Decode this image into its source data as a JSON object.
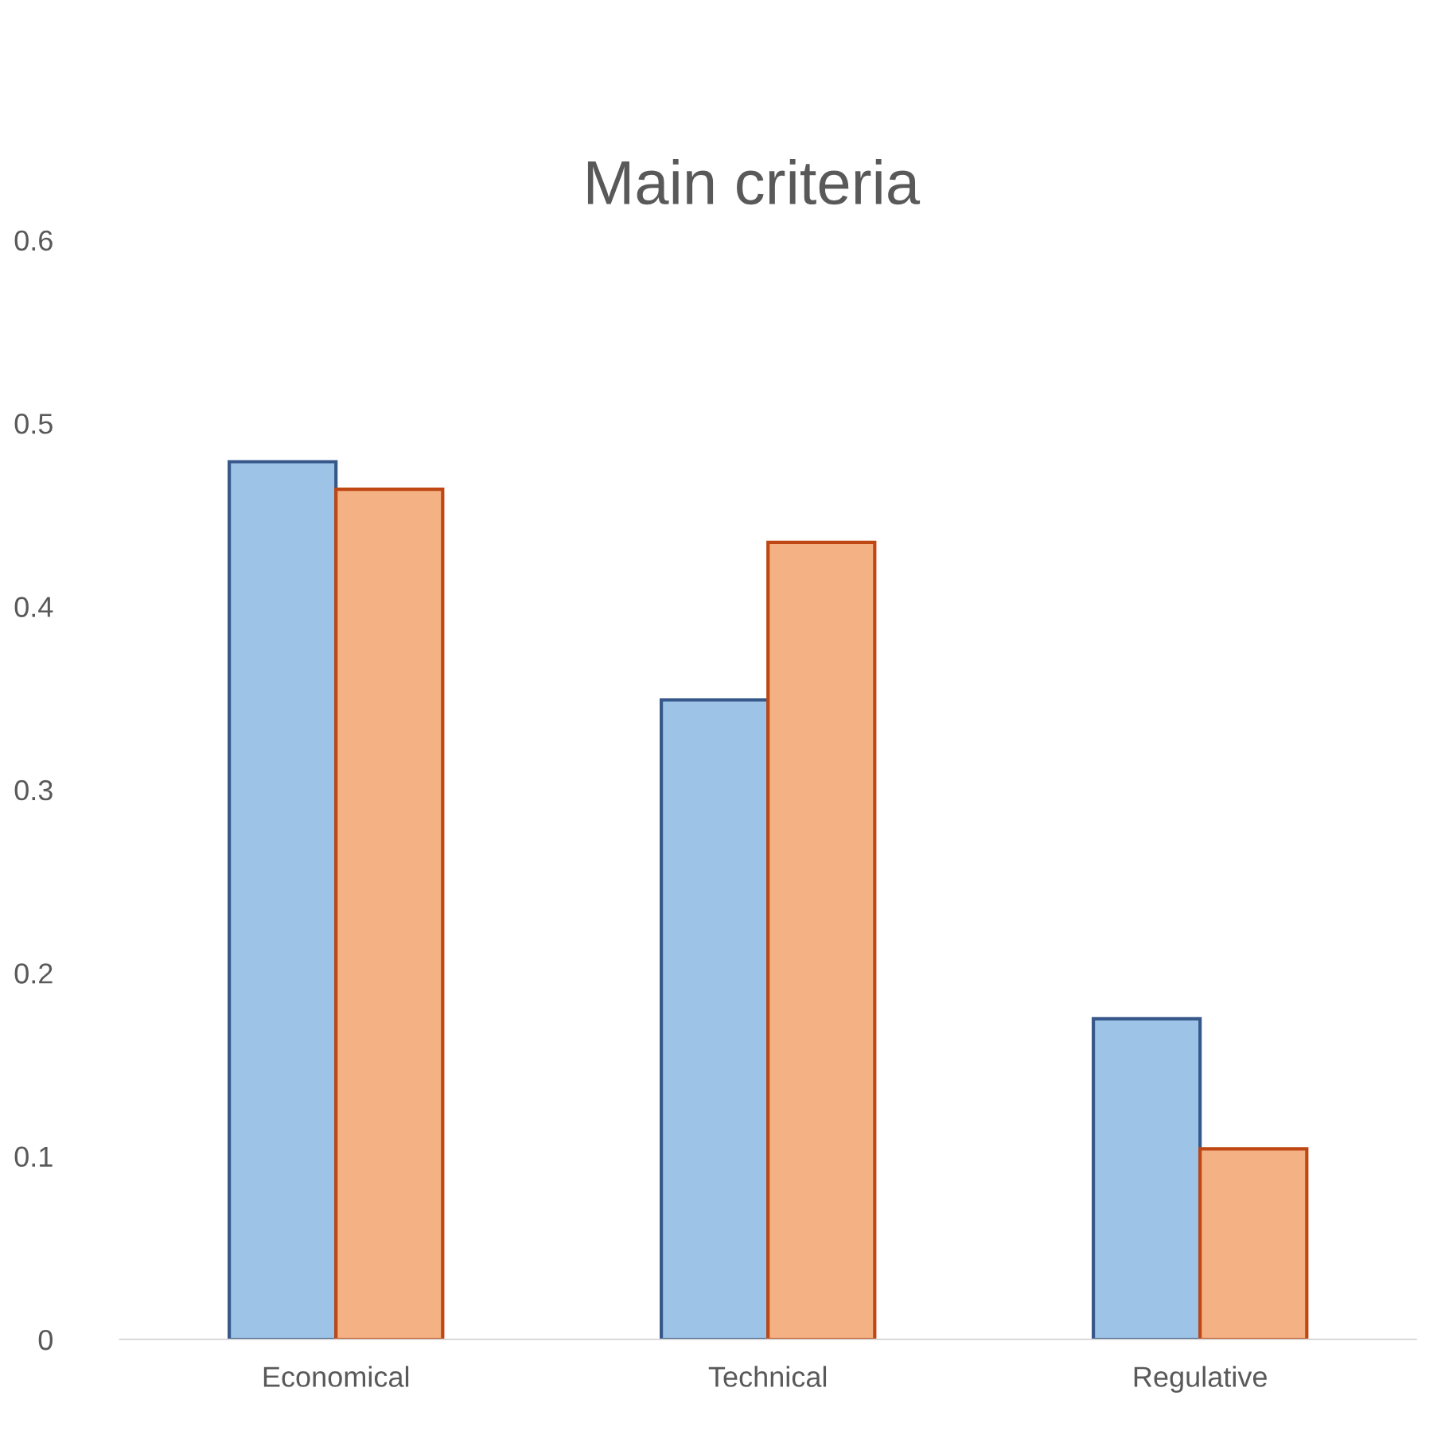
{
  "chart_data": {
    "type": "bar",
    "title": "Main criteria",
    "categories": [
      "Economical",
      "Technical",
      "Regulative"
    ],
    "series": [
      {
        "color": "#9dc3e6",
        "values": [
          0.479,
          0.349,
          0.175
        ]
      },
      {
        "color": "#f4b183",
        "values": [
          0.464,
          0.435,
          0.104
        ]
      }
    ],
    "ylim": [
      0,
      0.6
    ],
    "yticks": [
      0,
      0.1,
      0.2,
      0.3,
      0.4,
      0.5,
      0.6
    ],
    "grid": false,
    "legend": false
  }
}
